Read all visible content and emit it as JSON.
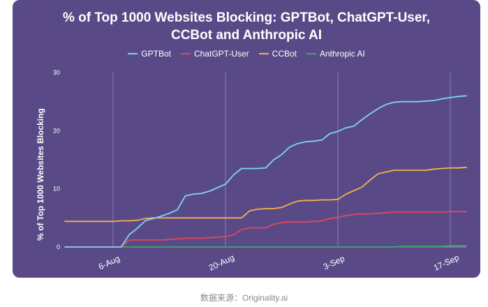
{
  "caption": "数据来源：Originality.ai",
  "chart_data": {
    "type": "line",
    "title": [
      "% of Top 1000 Websites Blocking: GPTBot, ChatGPT-User,",
      "CCBot and Anthropic AI"
    ],
    "ylabel": "% of Top 1000 Websites Blocking",
    "xlabel": "",
    "ylim": [
      0,
      30
    ],
    "yticks": [
      0,
      10,
      20,
      30
    ],
    "x_dates": [
      "2023-07-31",
      "2023-08-01",
      "2023-08-02",
      "2023-08-03",
      "2023-08-04",
      "2023-08-05",
      "2023-08-06",
      "2023-08-07",
      "2023-08-08",
      "2023-08-09",
      "2023-08-10",
      "2023-08-11",
      "2023-08-12",
      "2023-08-13",
      "2023-08-14",
      "2023-08-15",
      "2023-08-16",
      "2023-08-17",
      "2023-08-18",
      "2023-08-19",
      "2023-08-20",
      "2023-08-21",
      "2023-08-22",
      "2023-08-23",
      "2023-08-24",
      "2023-08-25",
      "2023-08-26",
      "2023-08-27",
      "2023-08-28",
      "2023-08-29",
      "2023-08-30",
      "2023-08-31",
      "2023-09-01",
      "2023-09-02",
      "2023-09-03",
      "2023-09-04",
      "2023-09-05",
      "2023-09-06",
      "2023-09-07",
      "2023-09-08",
      "2023-09-09",
      "2023-09-10",
      "2023-09-11",
      "2023-09-12",
      "2023-09-13",
      "2023-09-14",
      "2023-09-15",
      "2023-09-16",
      "2023-09-17",
      "2023-09-18",
      "2023-09-19"
    ],
    "xticks": [
      {
        "label": "6-Aug",
        "date": "2023-08-06"
      },
      {
        "label": "20-Aug",
        "date": "2023-08-20"
      },
      {
        "label": "3-Sep",
        "date": "2023-09-03"
      },
      {
        "label": "17-Sep",
        "date": "2023-09-17"
      }
    ],
    "grid": "vertical",
    "legend_position": "top",
    "series": [
      {
        "name": "GPTBot",
        "color": "#7fd3f7",
        "values": [
          0,
          0,
          0,
          0,
          0,
          0,
          0,
          0,
          2.1,
          3.2,
          4.5,
          4.9,
          5.3,
          5.8,
          6.4,
          8.8,
          9.1,
          9.2,
          9.6,
          10.2,
          10.8,
          12.4,
          13.5,
          13.5,
          13.5,
          13.6,
          15.0,
          15.9,
          17.2,
          17.8,
          18.1,
          18.2,
          18.4,
          19.5,
          19.9,
          20.5,
          20.8,
          21.9,
          22.9,
          23.8,
          24.5,
          24.9,
          25.0,
          25.0,
          25.0,
          25.1,
          25.2,
          25.5,
          25.7,
          25.9,
          26.0
        ]
      },
      {
        "name": "ChatGPT-User",
        "color": "#e0475f",
        "values": [
          0,
          0,
          0,
          0,
          0,
          0,
          0,
          0,
          1.2,
          1.2,
          1.2,
          1.2,
          1.2,
          1.3,
          1.4,
          1.5,
          1.5,
          1.5,
          1.6,
          1.7,
          1.8,
          2.1,
          3.0,
          3.3,
          3.3,
          3.3,
          3.9,
          4.2,
          4.3,
          4.3,
          4.3,
          4.4,
          4.5,
          4.9,
          5.1,
          5.4,
          5.6,
          5.7,
          5.7,
          5.8,
          5.9,
          6.0,
          6.0,
          6.0,
          6.0,
          6.0,
          6.0,
          6.0,
          6.1,
          6.1,
          6.1
        ]
      },
      {
        "name": "CCBot",
        "color": "#f1b24a",
        "values": [
          4.4,
          4.4,
          4.4,
          4.4,
          4.4,
          4.4,
          4.4,
          4.5,
          4.5,
          4.6,
          4.9,
          5.0,
          5.0,
          5.0,
          5.0,
          5.0,
          5.0,
          5.0,
          5.0,
          5.0,
          5.0,
          5.0,
          5.0,
          6.2,
          6.5,
          6.6,
          6.6,
          6.8,
          7.4,
          7.9,
          8.0,
          8.0,
          8.1,
          8.1,
          8.2,
          9.1,
          9.7,
          10.3,
          11.5,
          12.6,
          12.9,
          13.2,
          13.2,
          13.2,
          13.2,
          13.2,
          13.4,
          13.5,
          13.6,
          13.6,
          13.7
        ]
      },
      {
        "name": "Anthropic AI",
        "color": "#3fa96b",
        "values": [
          0,
          0,
          0,
          0,
          0,
          0,
          0,
          0,
          0,
          0,
          0,
          0,
          0,
          0,
          0,
          0,
          0,
          0,
          0,
          0,
          0,
          0,
          0,
          0,
          0,
          0,
          0,
          0,
          0,
          0,
          0,
          0,
          0,
          0,
          0,
          0,
          0,
          0,
          0,
          0,
          0,
          0,
          0.1,
          0.1,
          0.1,
          0.1,
          0.1,
          0.1,
          0.2,
          0.2,
          0.2
        ]
      }
    ]
  }
}
